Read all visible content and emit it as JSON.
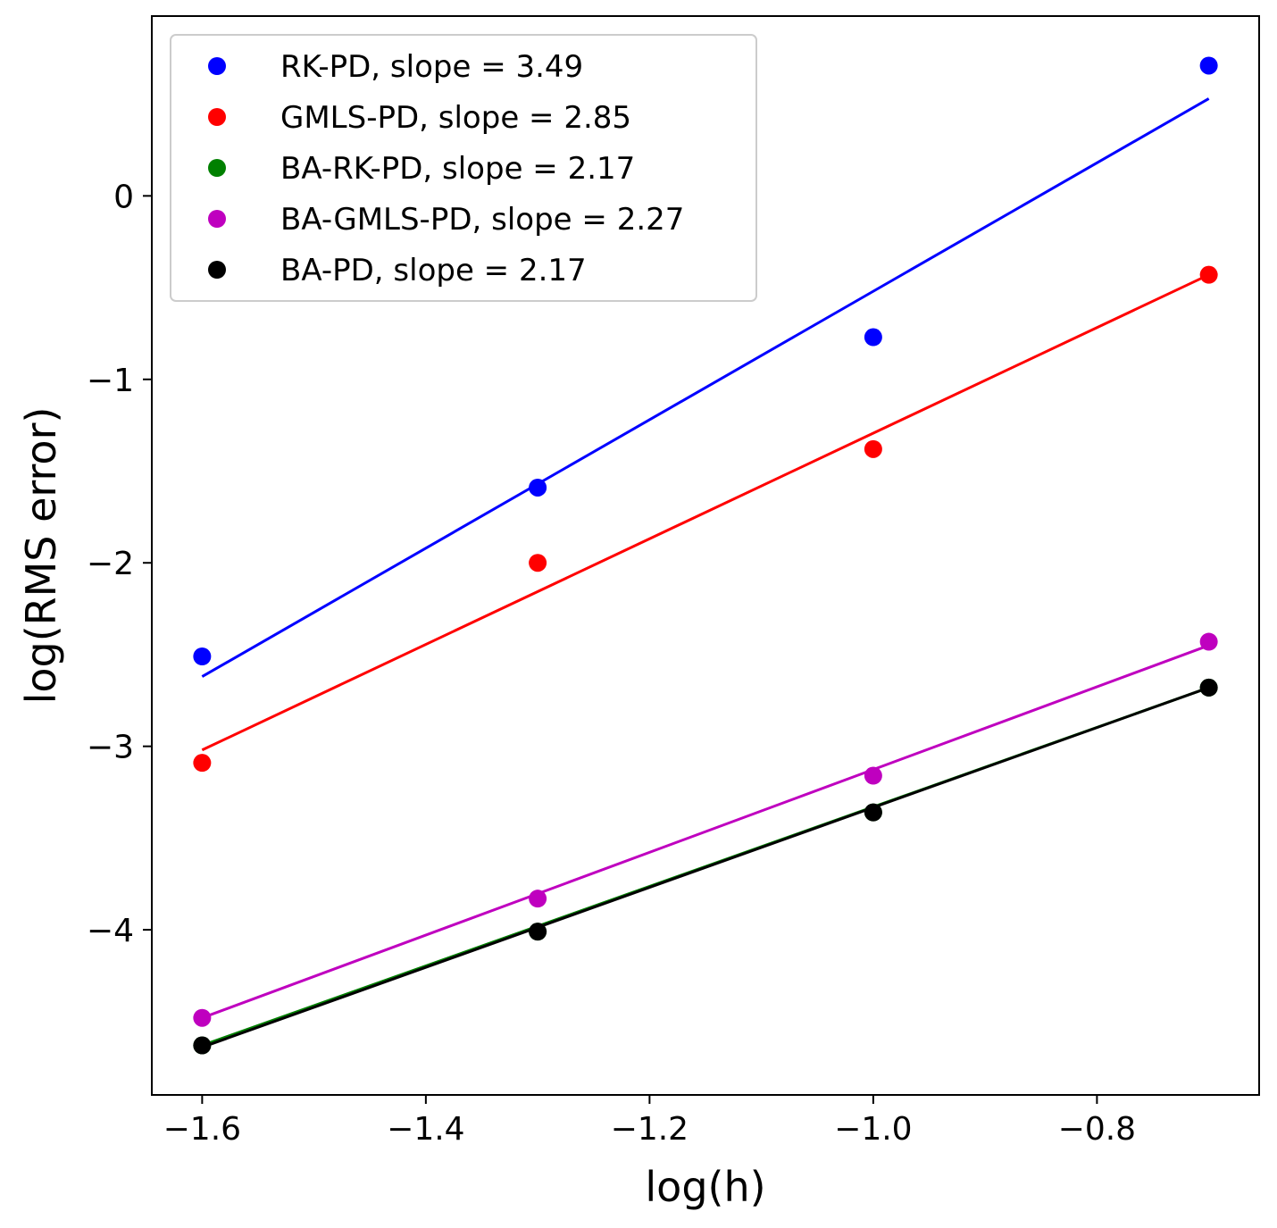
{
  "chart_data": {
    "type": "scatter",
    "title": "",
    "xlabel": "log(h)",
    "ylabel": "log(RMS error)",
    "xlim": [
      -1.645,
      -0.655
    ],
    "ylim": [
      -4.9,
      0.98
    ],
    "xticks": [
      -1.6,
      -1.4,
      -1.2,
      -1.0,
      -0.8
    ],
    "xtick_labels": [
      "−1.6",
      "−1.4",
      "−1.2",
      "−1.0",
      "−0.8"
    ],
    "yticks": [
      0,
      -1,
      -2,
      -3,
      -4
    ],
    "ytick_labels": [
      "0",
      "−1",
      "−2",
      "−3",
      "−4"
    ],
    "legend_position": "upper-left",
    "series": [
      {
        "name": "RK-PD, slope = 3.49",
        "color": "#0000ff",
        "x": [
          -1.6,
          -1.3,
          -1.0,
          -0.7
        ],
        "y": [
          -2.51,
          -1.59,
          -0.77,
          0.71
        ],
        "fit": {
          "x": [
            -1.6,
            -0.7
          ],
          "y": [
            -2.62,
            0.53
          ]
        }
      },
      {
        "name": "GMLS-PD, slope = 2.85",
        "color": "#ff0000",
        "x": [
          -1.6,
          -1.3,
          -1.0,
          -0.7
        ],
        "y": [
          -3.09,
          -2.0,
          -1.38,
          -0.43
        ],
        "fit": {
          "x": [
            -1.6,
            -0.7
          ],
          "y": [
            -3.02,
            -0.43
          ]
        }
      },
      {
        "name": "BA-RK-PD, slope = 2.17",
        "color": "#008000",
        "x": [
          -1.6,
          -1.3,
          -1.0,
          -0.7
        ],
        "y": [
          -4.63,
          -4.01,
          -3.36,
          -2.68
        ],
        "fit": {
          "x": [
            -1.6,
            -0.7
          ],
          "y": [
            -4.63,
            -2.68
          ]
        }
      },
      {
        "name": "BA-GMLS-PD, slope = 2.27",
        "color": "#bf00bf",
        "x": [
          -1.6,
          -1.3,
          -1.0,
          -0.7
        ],
        "y": [
          -4.48,
          -3.83,
          -3.16,
          -2.43
        ],
        "fit": {
          "x": [
            -1.6,
            -0.7
          ],
          "y": [
            -4.48,
            -2.45
          ]
        }
      },
      {
        "name": "BA-PD, slope = 2.17",
        "color": "#000000",
        "x": [
          -1.6,
          -1.3,
          -1.0,
          -0.7
        ],
        "y": [
          -4.63,
          -4.01,
          -3.36,
          -2.68
        ],
        "fit": {
          "x": [
            -1.6,
            -0.7
          ],
          "y": [
            -4.64,
            -2.68
          ]
        }
      }
    ]
  }
}
